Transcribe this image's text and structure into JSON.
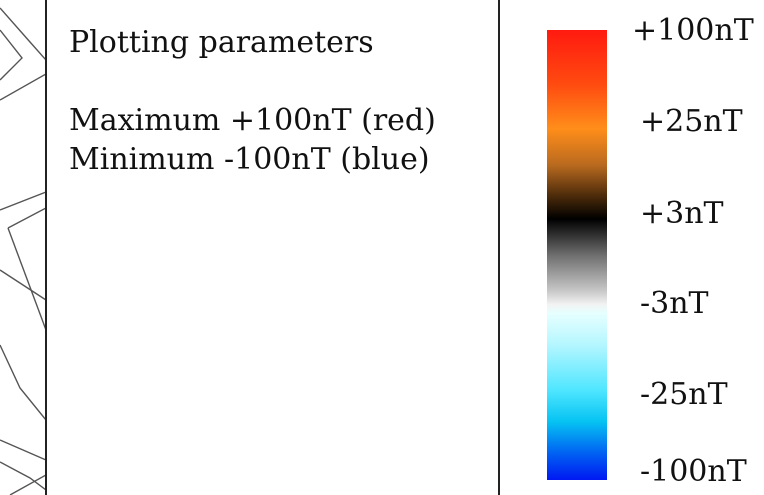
{
  "panel": {
    "title": "Plotting parameters",
    "maximum_line": "Maximum +100nT (red)",
    "minimum_line": "Minimum -100nT (blue)"
  },
  "legend": {
    "labels": [
      "+100nT",
      "+25nT",
      "+3nT",
      "-3nT",
      "-25nT",
      "-100nT"
    ],
    "top_color": "#ff1a10",
    "bottom_color": "#0018f2"
  }
}
